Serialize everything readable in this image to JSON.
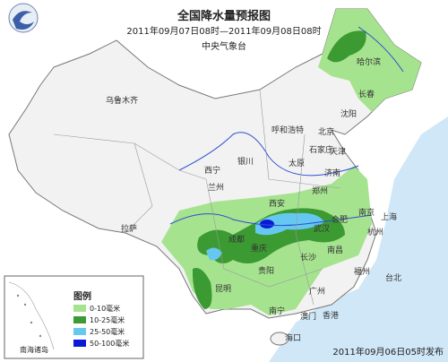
{
  "header": {
    "title": "全国降水量预报图",
    "period": "2011年09月07日08时—2011年09月08日08时",
    "issuer": "中央气象台"
  },
  "cities": [
    "乌鲁木齐",
    "拉萨",
    "西宁",
    "兰州",
    "银川",
    "呼和浩特",
    "北京",
    "天津",
    "石家庄",
    "太原",
    "济南",
    "郑州",
    "西安",
    "成都",
    "重庆",
    "武汉",
    "合肥",
    "南京",
    "上海",
    "杭州",
    "南昌",
    "长沙",
    "贵阳",
    "昆明",
    "南宁",
    "广州",
    "福州",
    "台北",
    "香港",
    "澳门",
    "海口",
    "哈尔滨",
    "长春",
    "沈阳"
  ],
  "legend": {
    "title": "图例",
    "items": [
      {
        "label": "0-10毫米",
        "color": "#a6e38f"
      },
      {
        "label": "10-25毫米",
        "color": "#3c9a32"
      },
      {
        "label": "25-50毫米",
        "color": "#66c8f0"
      },
      {
        "label": "50-100毫米",
        "color": "#0a1ad8"
      }
    ]
  },
  "inset": {
    "label": "南海诸岛"
  },
  "footer": {
    "release": "2011年09月06日05时发布"
  }
}
